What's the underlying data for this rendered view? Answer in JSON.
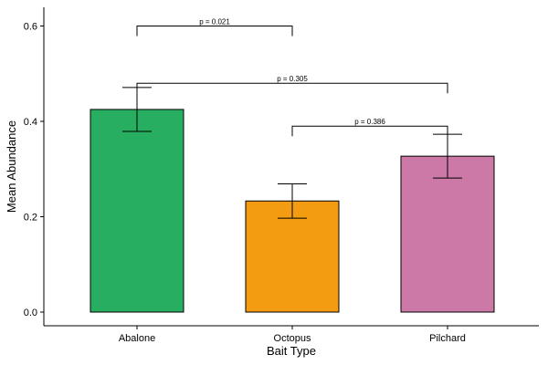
{
  "chart_data": {
    "type": "bar",
    "title": "",
    "xlabel": "Bait Type",
    "ylabel": "Mean Abundance",
    "categories": [
      "Abalone",
      "Octopus",
      "Pilchard"
    ],
    "values": [
      0.425,
      0.233,
      0.327
    ],
    "error_low": [
      0.379,
      0.197,
      0.281
    ],
    "error_high": [
      0.471,
      0.269,
      0.373
    ],
    "colors": [
      "#27ae60",
      "#f39c12",
      "#cc79a7"
    ],
    "ylim": [
      0,
      0.62
    ],
    "yticks": [
      0.0,
      0.2,
      0.4,
      0.6
    ],
    "ytick_labels": [
      "0.0",
      "0.2",
      "0.4",
      "0.6"
    ],
    "grid": false,
    "legend": "none",
    "annotations": [
      {
        "from": "Abalone",
        "to": "Octopus",
        "y": 0.6,
        "text": "p = 0.021"
      },
      {
        "from": "Abalone",
        "to": "Pilchard",
        "y": 0.48,
        "text": "p = 0.305"
      },
      {
        "from": "Octopus",
        "to": "Pilchard",
        "y": 0.39,
        "text": "p = 0.386"
      }
    ]
  }
}
